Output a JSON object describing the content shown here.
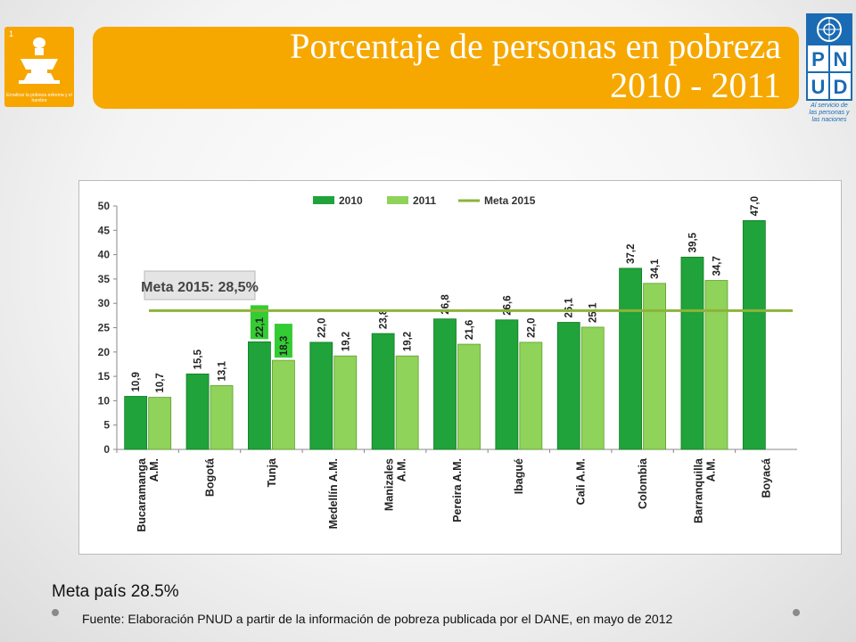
{
  "header": {
    "title_line1": "Porcentaje de personas en pobreza",
    "title_line2": "2010  - 2011"
  },
  "logo_left": {
    "number": "1",
    "caption": "Erradicar la pobreza extrema y el hambre",
    "color": "#f7a600"
  },
  "undp_logo": {
    "letters": [
      "P",
      "N",
      "U",
      "D"
    ],
    "caption": "Al servicio de las personas y las naciones",
    "color": "#1a6bb3"
  },
  "chart_data": {
    "type": "bar",
    "categories": [
      "Bucaramanga\nA.M.",
      "Bogotá",
      "Tunja",
      "Medellín A.M.",
      "Manizales\nA.M.",
      "Pereira A.M.",
      "Ibagué",
      "Cali A.M.",
      "Colombia",
      "Barranquilla\nA.M.",
      "Boyacá"
    ],
    "series": [
      {
        "name": "2010",
        "color": "#1fa33a",
        "values": [
          10.9,
          15.5,
          22.1,
          22.0,
          23.8,
          26.8,
          26.6,
          26.1,
          37.2,
          39.5,
          47.0
        ],
        "labels": [
          "10,9",
          "15,5",
          "22,1",
          "22,0",
          "23,8",
          "26,8",
          "26,6",
          "26,1",
          "37,2",
          "39,5",
          "47,0"
        ]
      },
      {
        "name": "2011",
        "color": "#8fd35a",
        "values": [
          10.7,
          13.1,
          18.3,
          19.2,
          19.2,
          21.6,
          22.0,
          25.1,
          34.1,
          34.7,
          null
        ],
        "labels": [
          "10,7",
          "13,1",
          "18,3",
          "19,2",
          "19,2",
          "21,6",
          "22,0",
          "25,1",
          "34,1",
          "34,7",
          ""
        ]
      }
    ],
    "reference_line": {
      "name": "Meta 2015",
      "value": 28.5,
      "color": "#8db33a"
    },
    "annotation": "Meta 2015: 28,5%",
    "highlight_category": "Tunja",
    "highlight_color": "#33cc33",
    "ylim": [
      0,
      50
    ],
    "yticks": [
      0,
      5,
      10,
      15,
      20,
      25,
      30,
      35,
      40,
      45,
      50
    ],
    "legend_position": "top"
  },
  "footer": {
    "meta_note": "Meta país 28.5%",
    "source": "Fuente: Elaboración PNUD a partir de la información de pobreza publicada  por el  DANE, en mayo de 2012"
  }
}
